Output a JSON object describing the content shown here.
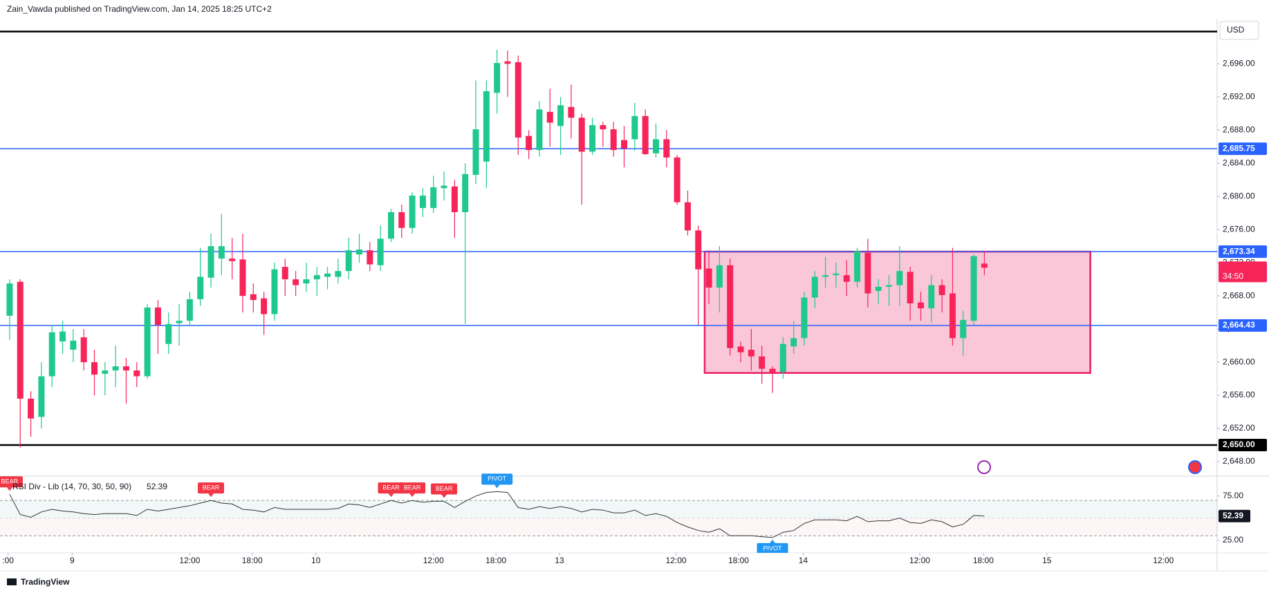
{
  "header": {
    "text": "Zain_Vawda published on TradingView.com, Jan 14, 2025 18:25 UTC+2"
  },
  "footer": {
    "brand": "TradingView"
  },
  "chart_data": [
    {
      "type": "candlestick",
      "currency": "USD",
      "up_color": "#1fc98e",
      "down_color": "#f7245a",
      "open": [
        2665.6,
        2669.7,
        2655.6,
        2653.4,
        2658.3,
        2662.5,
        2661.5,
        2663,
        2660,
        2658.6,
        2659,
        2659.5,
        2659,
        2658.3,
        2666.6,
        2662.2,
        2664.7,
        2665,
        2667.6,
        2670.2,
        2672.5,
        2672.5,
        2672.4,
        2668.2,
        2667.7,
        2665.8,
        2671.5,
        2670,
        2669.5,
        2670,
        2670.3,
        2670.3,
        2671,
        2673,
        2673.5,
        2671.7,
        2674.9,
        2678.1,
        2676.2,
        2678.6,
        2678.6,
        2681,
        2681.2,
        2678.1,
        2682.6,
        2684.2,
        2692.5,
        2696.3,
        2696.2,
        2687.3,
        2685.6,
        2690.2,
        2688.5,
        2690.8,
        2689.5,
        2685.4,
        2688.6,
        2688.1,
        2686.8,
        2686.9,
        2689.7,
        2685.2,
        2686.9,
        2684.7,
        2679.3,
        2675.9,
        2671.3,
        2669,
        2671.7,
        2661.9,
        2661.5,
        2660.7,
        2659.2,
        2658.8,
        2661.9,
        2662.9,
        2667.8,
        2670.3,
        2670.5,
        2670.5,
        2669.7,
        2673.2,
        2668.6,
        2669.1,
        2669.3,
        2670.9,
        2667.2,
        2666.5,
        2669.3,
        2668.3,
        2662.9,
        2665,
        2671.9
      ],
      "high": [
        2670,
        2670,
        2656.5,
        2660,
        2664.5,
        2665,
        2664,
        2664,
        2661.5,
        2660,
        2662,
        2660.5,
        2660,
        2667,
        2667.5,
        2666,
        2667,
        2668.5,
        2673.8,
        2675.5,
        2677.9,
        2675,
        2675.5,
        2669.5,
        2668.5,
        2672,
        2672.5,
        2671,
        2672,
        2671.5,
        2671.5,
        2672.5,
        2675,
        2675.5,
        2674.5,
        2676.5,
        2678.5,
        2679,
        2680.5,
        2681,
        2682.5,
        2683,
        2682,
        2684,
        2694,
        2694,
        2697.7,
        2697.6,
        2697,
        2688,
        2691.5,
        2693,
        2692,
        2693.5,
        2690,
        2689.5,
        2689,
        2689,
        2688.5,
        2691.3,
        2690.5,
        2688.8,
        2688,
        2685,
        2680.7,
        2676.5,
        2673.5,
        2674,
        2672.5,
        2662.5,
        2664,
        2662,
        2659.5,
        2663,
        2665,
        2668.5,
        2671,
        2672.7,
        2672,
        2672.3,
        2673.8,
        2674.9,
        2670,
        2670.5,
        2674,
        2671.5,
        2668.5,
        2670.5,
        2670,
        2673.8,
        2666.2,
        2673,
        2673.4
      ],
      "low": [
        2662.7,
        2649.7,
        2651,
        2652,
        2657,
        2661,
        2660,
        2659,
        2656,
        2656,
        2657,
        2655,
        2657,
        2658,
        2661,
        2661,
        2662,
        2664.5,
        2666.8,
        2669,
        2670.5,
        2670,
        2666,
        2666,
        2663.3,
        2665,
        2668,
        2668,
        2668.5,
        2668,
        2668.8,
        2669.5,
        2670,
        2672,
        2671,
        2671,
        2674.5,
        2675,
        2675.5,
        2677.5,
        2678,
        2679.5,
        2675,
        2664.6,
        2681.5,
        2681,
        2690,
        2692,
        2685,
        2684.5,
        2684.8,
        2686,
        2685,
        2687,
        2679,
        2685,
        2686,
        2684.8,
        2683.5,
        2685.5,
        2685,
        2684.7,
        2683.5,
        2679,
        2675.3,
        2664.5,
        2667,
        2666,
        2660.8,
        2660,
        2659,
        2657.4,
        2656.3,
        2658,
        2661,
        2662,
        2666.5,
        2669,
        2669,
        2668,
        2669,
        2666.6,
        2667,
        2666.8,
        2666.8,
        2665,
        2665,
        2664.8,
        2666,
        2662,
        2660.8,
        2664.5,
        2670.5
      ],
      "close": [
        2669.5,
        2655.6,
        2653.2,
        2658.3,
        2663.6,
        2663.7,
        2662.6,
        2660,
        2658.5,
        2659,
        2659.5,
        2659,
        2658.3,
        2666.6,
        2664.5,
        2664.6,
        2665,
        2667.6,
        2670.3,
        2674,
        2674,
        2672.2,
        2668,
        2667.5,
        2665.8,
        2671.2,
        2670,
        2669.3,
        2670,
        2670.5,
        2670.7,
        2671,
        2673.5,
        2673.6,
        2671.8,
        2674.9,
        2678.1,
        2676.2,
        2680.1,
        2680.1,
        2681.1,
        2681.3,
        2678.1,
        2682.7,
        2688.1,
        2692.7,
        2696.1,
        2696,
        2687.1,
        2685.6,
        2690.5,
        2688.9,
        2691,
        2689.5,
        2685.4,
        2688.6,
        2688.1,
        2685.6,
        2685.8,
        2689.7,
        2685.1,
        2686.9,
        2684.7,
        2679.3,
        2675.9,
        2671.2,
        2669,
        2671.7,
        2661.7,
        2661.2,
        2660.7,
        2659.2,
        2658.8,
        2662.2,
        2662.9,
        2667.8,
        2670.3,
        2670.5,
        2670.7,
        2669.7,
        2673.4,
        2668.3,
        2669.1,
        2669.3,
        2671,
        2667.1,
        2666.5,
        2669.3,
        2668.1,
        2662.9,
        2665.1,
        2672.8,
        2671.4
      ],
      "countdown": "34:50",
      "countdown_color": "#f7245a",
      "xlim": [
        -0.91,
        113.97
      ],
      "xticks": [
        {
          "value": -0.15,
          "label": ":00"
        },
        {
          "value": 5.9,
          "label": "9"
        },
        {
          "value": 17,
          "label": "12:00"
        },
        {
          "value": 22.9,
          "label": "18:00"
        },
        {
          "value": 28.9,
          "label": "10"
        },
        {
          "value": 40,
          "label": "12:00"
        },
        {
          "value": 45.9,
          "label": "18:00"
        },
        {
          "value": 51.9,
          "label": "13"
        },
        {
          "value": 62.9,
          "label": "12:00"
        },
        {
          "value": 68.8,
          "label": "18:00"
        },
        {
          "value": 74.9,
          "label": "14"
        },
        {
          "value": 85.9,
          "label": "12:00"
        },
        {
          "value": 91.9,
          "label": "18:00"
        },
        {
          "value": 97.9,
          "label": "15"
        },
        {
          "value": 108.9,
          "label": "12:00"
        }
      ],
      "ylim": [
        2646.25,
        2701.2
      ],
      "yticks": [
        {
          "value": 2648,
          "label": "2,648.00"
        },
        {
          "value": 2652,
          "label": "2,652.00"
        },
        {
          "value": 2656,
          "label": "2,656.00"
        },
        {
          "value": 2660,
          "label": "2,660.00"
        },
        {
          "value": 2664,
          "label": "2,664.00"
        },
        {
          "value": 2668,
          "label": "2,668.00"
        },
        {
          "value": 2672,
          "label": "2,672.00"
        },
        {
          "value": 2676,
          "label": "2,676.00"
        },
        {
          "value": 2680,
          "label": "2,680.00"
        },
        {
          "value": 2684,
          "label": "2,684.00"
        },
        {
          "value": 2688,
          "label": "2,688.00"
        },
        {
          "value": 2692,
          "label": "2,692.00"
        },
        {
          "value": 2696,
          "label": "2,696.00"
        }
      ],
      "grid": false,
      "levels": [
        {
          "value": 2699.9,
          "color": "#000000"
        },
        {
          "value": 2685.75,
          "label": "2,685.75",
          "color": "#2962ff"
        },
        {
          "value": 2673.34,
          "label": "2,673.34",
          "color": "#2962ff"
        },
        {
          "value": 2664.43,
          "label": "2,664.43",
          "color": "#2962ff"
        },
        {
          "value": 2650,
          "label": "2,650.00",
          "color": "#000000"
        }
      ],
      "zone": {
        "x": [
          65.6,
          102
        ],
        "y": [
          2658.7,
          2673.34
        ],
        "color": "#e91e63"
      }
    },
    {
      "type": "line",
      "title": "RSI Div - Lib (14, 70, 30, 50, 90)",
      "color": "#333333",
      "values": [
        77,
        54,
        51,
        57,
        60,
        58,
        57,
        55,
        54,
        55,
        55,
        55,
        53,
        60,
        58,
        60,
        62,
        64,
        67,
        70,
        67,
        66,
        60,
        59,
        57,
        62,
        60,
        60,
        60,
        60,
        60,
        61,
        66,
        65,
        62,
        66,
        70,
        67,
        70,
        68,
        69,
        69,
        62,
        69,
        75,
        79,
        80,
        79,
        62,
        60,
        63,
        61,
        63,
        61,
        57,
        60,
        59,
        56,
        56,
        59,
        53,
        55,
        52,
        45,
        40,
        36,
        34,
        38,
        30,
        30,
        30,
        29,
        28,
        34,
        36,
        44,
        48,
        48,
        48,
        47,
        52,
        46,
        47,
        47,
        50,
        45,
        44,
        48,
        46,
        40,
        43,
        53,
        52.39
      ],
      "ylim": [
        11.5,
        96.7
      ],
      "yticks": [
        {
          "value": 75,
          "label": "75.00"
        },
        {
          "value": 25,
          "label": "25.00"
        }
      ],
      "bands": [
        70,
        50,
        30
      ],
      "signals": [
        {
          "x": 0,
          "label": "BEAR",
          "color": "#f23645",
          "side": "above"
        },
        {
          "x": 19,
          "label": "BEAR",
          "color": "#f23645",
          "side": "above"
        },
        {
          "x": 36,
          "label": "BEAR",
          "color": "#f23645",
          "side": "above"
        },
        {
          "x": 38,
          "label": "BEAR",
          "color": "#f23645",
          "side": "above"
        },
        {
          "x": 41,
          "label": "BEAR",
          "color": "#f23645",
          "side": "above"
        },
        {
          "x": 46,
          "label": "PIVOT",
          "color": "#2196f3",
          "side": "above"
        },
        {
          "x": 72,
          "label": "PIVOT",
          "color": "#2196f3",
          "side": "below"
        }
      ]
    }
  ]
}
